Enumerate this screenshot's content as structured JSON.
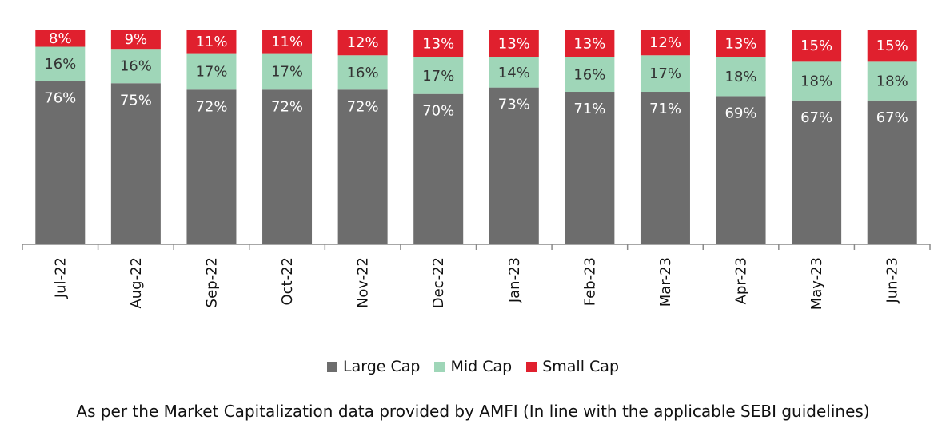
{
  "chart_data": {
    "type": "bar",
    "stacked": true,
    "categories": [
      "Jul-22",
      "Aug-22",
      "Sep-22",
      "Oct-22",
      "Nov-22",
      "Dec-22",
      "Jan-23",
      "Feb-23",
      "Mar-23",
      "Apr-23",
      "May-23",
      "Jun-23"
    ],
    "series": [
      {
        "name": "Large Cap",
        "color": "#6d6d6d",
        "label_color": "#ffffff",
        "values": [
          76,
          75,
          72,
          72,
          72,
          70,
          73,
          71,
          71,
          69,
          67,
          67
        ]
      },
      {
        "name": "Mid Cap",
        "color": "#9fd6b8",
        "label_color": "#333333",
        "values": [
          16,
          16,
          17,
          17,
          16,
          17,
          14,
          16,
          17,
          18,
          18,
          18
        ]
      },
      {
        "name": "Small Cap",
        "color": "#e0202e",
        "label_color": "#ffffff",
        "values": [
          8,
          9,
          11,
          11,
          12,
          13,
          13,
          13,
          12,
          13,
          15,
          15
        ]
      }
    ],
    "ylim": [
      0,
      100
    ],
    "grid": false,
    "legend_position": "bottom",
    "footnote": "As per the Market Capitalization data provided by AMFI (In line with the applicable SEBI guidelines)"
  }
}
